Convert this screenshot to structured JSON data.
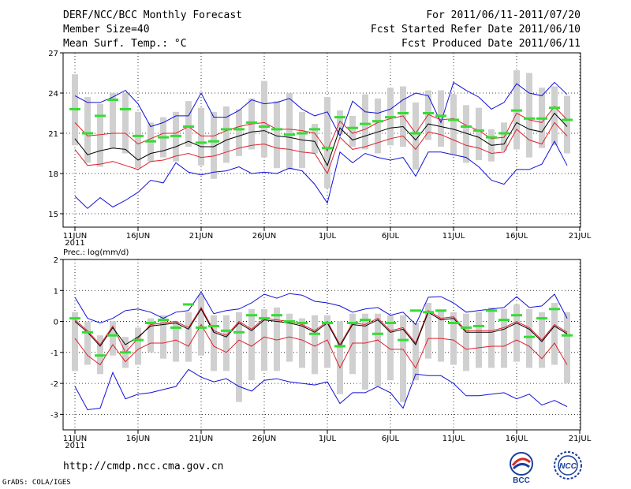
{
  "header": {
    "title": "DERF/NCC/BCC Monthly Forecast",
    "member_size": "Member Size=40",
    "variable": "Mean Surf. Temp.: °C",
    "period": "For 2011/06/11-2011/07/20",
    "started": "Fcst Started Refer Date 2011/06/10",
    "produced": "Fcst Produced Date 2011/06/11"
  },
  "footer": {
    "url": "http://cmdp.ncc.cma.gov.cn",
    "grads": "GrADS: COLA/IGES",
    "logo_bcc": "BCC",
    "logo_ncc": "NCC"
  },
  "colors": {
    "ensemble_mean": "#000000",
    "spread_red": "#e0202a",
    "extreme_blue": "#1010d8",
    "member_box": "#d0d0d0",
    "mean_green": "#33dd33"
  },
  "chart_data": [
    {
      "type": "line",
      "title": "Mean Surf. Temp.: °C",
      "ylim": [
        14,
        27
      ],
      "yticks": [
        15,
        18,
        21,
        24,
        27
      ],
      "x_days": 40,
      "xtick_labels": [
        "11JUN",
        "16JUN",
        "21JUN",
        "26JUN",
        "1JUL",
        "6JUL",
        "11JUL",
        "16JUL",
        "21JUL"
      ],
      "year_label": "2011",
      "series": [
        {
          "name": "max",
          "values": [
            23.8,
            23.3,
            23.3,
            23.7,
            24.2,
            23.2,
            21.5,
            21.8,
            22.3,
            22.3,
            24.0,
            22.2,
            22.2,
            22.7,
            23.5,
            23.2,
            23.3,
            23.6,
            22.8,
            22.3,
            22.6,
            20.8,
            23.4,
            22.6,
            22.5,
            22.8,
            23.5,
            24.0,
            23.8,
            21.8,
            24.8,
            24.2,
            23.7,
            22.8,
            23.3,
            24.7,
            24.0,
            23.8,
            24.8,
            23.9
          ]
        },
        {
          "name": "upper",
          "values": [
            21.8,
            20.8,
            20.9,
            21.0,
            21.0,
            20.2,
            20.6,
            21.0,
            21.0,
            21.5,
            20.8,
            20.8,
            21.2,
            21.5,
            21.7,
            21.8,
            21.3,
            21.3,
            21.2,
            21.0,
            19.7,
            21.9,
            21.0,
            21.3,
            21.8,
            22.1,
            22.3,
            21.0,
            22.4,
            22.0,
            22.1,
            21.6,
            21.2,
            20.6,
            20.7,
            22.5,
            22.0,
            21.8,
            23.0,
            22.0
          ]
        },
        {
          "name": "mean",
          "values": [
            20.6,
            19.4,
            19.7,
            19.9,
            19.8,
            19.0,
            19.5,
            19.7,
            20.0,
            20.4,
            20.0,
            20.0,
            20.5,
            20.8,
            21.1,
            21.2,
            20.8,
            20.7,
            20.5,
            20.4,
            18.6,
            21.4,
            20.5,
            20.8,
            21.1,
            21.4,
            21.5,
            20.5,
            21.7,
            21.5,
            21.3,
            21.0,
            20.7,
            20.1,
            20.2,
            21.8,
            21.3,
            21.1,
            22.5,
            21.5
          ]
        },
        {
          "name": "lower",
          "values": [
            19.8,
            18.6,
            18.7,
            18.9,
            18.6,
            18.3,
            18.9,
            19.0,
            19.3,
            19.5,
            19.2,
            19.3,
            19.6,
            19.9,
            20.1,
            20.2,
            19.9,
            19.8,
            19.6,
            19.5,
            18.0,
            20.7,
            19.8,
            20.0,
            20.3,
            20.6,
            20.8,
            19.8,
            21.1,
            20.9,
            20.5,
            20.1,
            19.9,
            19.5,
            19.6,
            21.3,
            20.5,
            20.2,
            21.8,
            20.8
          ]
        },
        {
          "name": "min",
          "values": [
            16.3,
            15.4,
            16.2,
            15.5,
            16.0,
            16.6,
            17.5,
            17.3,
            18.8,
            18.1,
            17.9,
            18.1,
            18.2,
            18.5,
            18.0,
            18.1,
            18.0,
            18.4,
            18.2,
            17.2,
            15.8,
            19.6,
            18.8,
            19.5,
            19.2,
            19.0,
            19.2,
            17.8,
            19.6,
            19.6,
            19.4,
            19.2,
            18.5,
            17.5,
            17.2,
            18.3,
            18.3,
            18.7,
            20.4,
            18.6
          ]
        },
        {
          "name": "green_mean",
          "values": [
            22.8,
            21.0,
            22.3,
            23.5,
            22.8,
            20.8,
            20.4,
            20.7,
            20.8,
            21.5,
            20.3,
            20.4,
            21.3,
            21.3,
            21.8,
            21.5,
            21.3,
            20.9,
            21.0,
            21.3,
            19.9,
            22.2,
            21.4,
            21.7,
            21.9,
            22.2,
            22.5,
            21.0,
            22.5,
            22.3,
            22.0,
            21.5,
            21.2,
            20.7,
            21.0,
            22.7,
            22.1,
            22.1,
            22.9,
            22.0
          ]
        },
        {
          "name": "box_top",
          "values": [
            25.4,
            23.7,
            23.2,
            24.0,
            24.0,
            22.6,
            21.8,
            22.2,
            22.6,
            23.4,
            22.9,
            22.6,
            23.0,
            22.8,
            23.6,
            24.9,
            23.4,
            24.0,
            22.6,
            21.7,
            23.7,
            22.7,
            22.3,
            23.9,
            23.6,
            24.4,
            24.5,
            23.3,
            24.2,
            24.2,
            23.9,
            23.1,
            22.9,
            21.3,
            21.8,
            25.7,
            25.5,
            24.4,
            24.5,
            23.8
          ]
        },
        {
          "name": "box_bottom",
          "values": [
            20.1,
            18.8,
            18.5,
            19.9,
            19.5,
            18.4,
            18.9,
            19.2,
            18.9,
            20.0,
            18.6,
            17.6,
            18.8,
            19.3,
            19.8,
            19.2,
            18.4,
            18.3,
            18.4,
            19.5,
            16.9,
            20.9,
            20.0,
            19.8,
            19.5,
            20.1,
            20.0,
            18.3,
            20.5,
            20.0,
            19.4,
            18.8,
            19.0,
            18.9,
            19.7,
            19.8,
            19.2,
            19.9,
            20.1,
            19.5
          ]
        }
      ]
    },
    {
      "type": "line",
      "title": "Prec.: log(mm/d)",
      "ylim": [
        -3.5,
        2
      ],
      "yticks": [
        -3,
        -2,
        -1,
        0,
        1,
        2
      ],
      "x_days": 40,
      "xtick_labels": [
        "11JUN",
        "16JUN",
        "21JUN",
        "26JUN",
        "1JUL",
        "6JUL",
        "11JUL",
        "16JUL",
        "21JUL"
      ],
      "year_label": "2011",
      "series": [
        {
          "name": "max",
          "values": [
            0.78,
            0.1,
            -0.05,
            0.1,
            0.35,
            0.4,
            0.3,
            0.1,
            0.3,
            0.35,
            0.95,
            0.25,
            0.35,
            0.4,
            0.6,
            0.88,
            0.75,
            0.9,
            0.85,
            0.65,
            0.6,
            0.5,
            0.3,
            0.4,
            0.45,
            0.2,
            0.3,
            -0.1,
            0.78,
            0.8,
            0.6,
            0.3,
            0.35,
            0.4,
            0.45,
            0.8,
            0.45,
            0.5,
            0.88,
            0.1
          ]
        },
        {
          "name": "upper",
          "values": [
            0.05,
            -0.3,
            -0.75,
            -0.15,
            -1.0,
            -0.55,
            -0.1,
            -0.05,
            0.0,
            -0.2,
            0.45,
            -0.3,
            -0.45,
            0.0,
            -0.25,
            0.1,
            0.05,
            0.0,
            -0.1,
            -0.3,
            0.0,
            -0.75,
            -0.05,
            -0.1,
            0.1,
            -0.3,
            -0.2,
            -0.7,
            0.35,
            0.1,
            0.15,
            -0.3,
            -0.3,
            -0.3,
            -0.2,
            0.0,
            -0.2,
            -0.6,
            -0.1,
            -0.35
          ]
        },
        {
          "name": "mean",
          "values": [
            0.0,
            -0.35,
            -0.8,
            -0.2,
            -0.75,
            -0.5,
            -0.15,
            -0.1,
            -0.05,
            -0.25,
            0.4,
            -0.35,
            -0.5,
            -0.05,
            -0.3,
            0.05,
            0.0,
            -0.05,
            -0.15,
            -0.35,
            -0.05,
            -0.8,
            -0.1,
            -0.15,
            0.05,
            -0.35,
            -0.25,
            -0.75,
            0.3,
            0.05,
            0.1,
            -0.35,
            -0.35,
            -0.35,
            -0.25,
            -0.05,
            -0.25,
            -0.65,
            -0.15,
            -0.4
          ]
        },
        {
          "name": "lower",
          "values": [
            -0.55,
            -1.1,
            -1.4,
            -0.75,
            -1.3,
            -0.9,
            -0.7,
            -0.7,
            -0.6,
            -0.8,
            -0.1,
            -0.8,
            -1.0,
            -0.6,
            -0.8,
            -0.5,
            -0.6,
            -0.5,
            -0.6,
            -0.8,
            -0.6,
            -1.5,
            -0.7,
            -0.7,
            -0.6,
            -0.9,
            -0.9,
            -1.5,
            -0.55,
            -0.55,
            -0.6,
            -0.9,
            -0.85,
            -0.8,
            -0.8,
            -0.6,
            -0.8,
            -1.2,
            -0.7,
            -1.4
          ]
        },
        {
          "name": "min",
          "values": [
            -2.1,
            -2.85,
            -2.8,
            -1.65,
            -2.5,
            -2.35,
            -2.3,
            -2.2,
            -2.1,
            -1.55,
            -1.8,
            -1.95,
            -1.85,
            -2.1,
            -2.25,
            -1.9,
            -1.85,
            -1.95,
            -2.0,
            -2.05,
            -1.95,
            -2.65,
            -2.3,
            -2.3,
            -2.1,
            -2.3,
            -2.8,
            -1.7,
            -1.75,
            -1.75,
            -2.0,
            -2.4,
            -2.4,
            -2.35,
            -2.3,
            -2.5,
            -2.35,
            -2.7,
            -2.55,
            -2.75
          ]
        },
        {
          "name": "green_mean",
          "values": [
            0.1,
            -0.35,
            -1.1,
            -0.45,
            -1.0,
            -0.6,
            -0.05,
            0.05,
            -0.2,
            0.55,
            -0.2,
            -0.15,
            -0.3,
            -0.35,
            0.2,
            0.1,
            0.2,
            0.0,
            -0.05,
            -0.4,
            -0.05,
            -0.8,
            -0.05,
            0.05,
            -0.4,
            -0.05,
            -0.6,
            0.35,
            0.3,
            0.35,
            -0.05,
            -0.2,
            -0.15,
            0.35,
            0.05,
            0.2,
            -0.5,
            0.1,
            0.4,
            -0.45
          ]
        },
        {
          "name": "box_top",
          "values": [
            0.3,
            0.0,
            -0.45,
            0.0,
            -0.5,
            -0.2,
            0.1,
            0.2,
            0.0,
            0.3,
            0.85,
            0.2,
            0.2,
            0.3,
            0.4,
            0.4,
            0.45,
            0.25,
            0.1,
            0.2,
            0.2,
            0.0,
            0.25,
            0.25,
            0.25,
            0.2,
            0.2,
            -0.05,
            0.6,
            0.35,
            0.3,
            0.25,
            0.3,
            0.45,
            0.4,
            0.55,
            0.4,
            0.3,
            0.6,
            0.3
          ]
        },
        {
          "name": "box_bottom",
          "values": [
            -1.6,
            -1.4,
            -1.7,
            -1.1,
            -1.5,
            -1.4,
            -1.0,
            -1.2,
            -1.3,
            -1.3,
            -1.1,
            -1.6,
            -1.6,
            -2.6,
            -1.9,
            -1.6,
            -1.6,
            -1.3,
            -1.5,
            -1.7,
            -1.5,
            -2.35,
            -1.7,
            -2.2,
            -2.1,
            -1.9,
            -2.6,
            -1.9,
            -1.2,
            -1.3,
            -1.4,
            -1.6,
            -1.5,
            -1.5,
            -1.5,
            -1.3,
            -1.5,
            -1.5,
            -1.4,
            -2.0
          ]
        }
      ]
    }
  ]
}
